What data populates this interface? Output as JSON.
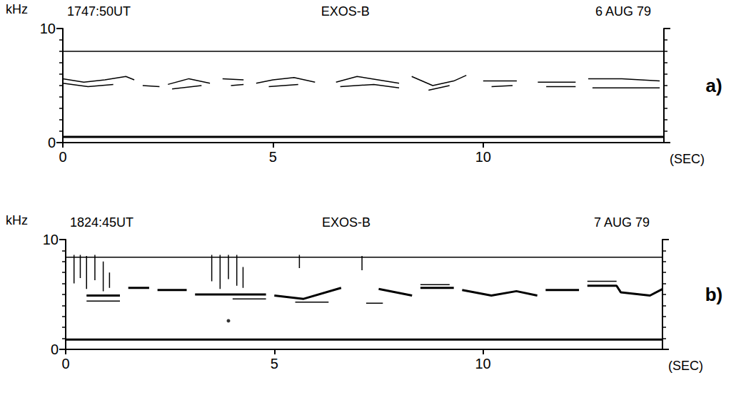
{
  "chart_data": [
    {
      "type": "line",
      "title": "EXOS-B",
      "annotations": [
        "1747:50UT",
        "6 AUG 79"
      ],
      "label": "a)",
      "x_label": "(SEC)",
      "y_label": "kHz",
      "xlim": [
        0,
        14.3
      ],
      "xticks": [
        0,
        5,
        10
      ],
      "ylim": [
        0,
        10
      ],
      "yticks": [
        0,
        10
      ],
      "grid": false,
      "color": "#000000",
      "series": [
        {
          "type": "line",
          "line_style": "solid",
          "x": [
            0,
            14.3
          ],
          "values": [
            8.0,
            8.0
          ]
        },
        {
          "type": "line",
          "line_style": "thick",
          "x": [
            0,
            14.3
          ],
          "values": [
            0.5,
            0.5
          ]
        },
        {
          "type": "line",
          "line_style": "solid",
          "x": [
            0,
            0.5,
            1.0,
            1.5,
            1.7,
            1.8,
            1.9,
            2.3,
            2.4,
            2.5,
            3.0,
            3.5,
            3.6,
            3.8,
            4.3,
            4.4,
            4.6,
            5.0,
            5.5,
            6.0,
            6.2,
            6.5,
            7.0,
            7.5,
            8.0,
            8.2,
            8.3,
            8.8,
            9.3,
            9.6,
            9.8,
            10.0,
            10.8,
            10.9,
            11.3,
            12.2,
            12.4,
            12.5,
            13.3,
            14.2
          ],
          "values": [
            5.6,
            5.3,
            5.5,
            5.8,
            5.5,
            null,
            5.0,
            4.9,
            null,
            5.1,
            5.6,
            5.2,
            null,
            5.6,
            5.5,
            null,
            5.2,
            5.5,
            5.7,
            5.3,
            null,
            5.3,
            5.8,
            5.5,
            5.2,
            null,
            5.8,
            5.0,
            5.4,
            5.9,
            null,
            5.4,
            5.4,
            null,
            5.3,
            5.3,
            null,
            5.6,
            5.6,
            5.4
          ]
        },
        {
          "type": "line",
          "line_style": "solid",
          "x": [
            0,
            0.6,
            1.2,
            1.4,
            2.6,
            3.3,
            3.4,
            4.0,
            4.3,
            4.4,
            4.9,
            5.6,
            5.8,
            6.6,
            7.4,
            8.0,
            8.1,
            8.7,
            9.2,
            9.5,
            10.2,
            10.7,
            10.9,
            11.5,
            12.2,
            12.4,
            12.6,
            14.2
          ],
          "values": [
            5.2,
            4.9,
            5.1,
            null,
            4.7,
            5.0,
            null,
            5.0,
            5.1,
            null,
            4.9,
            5.1,
            null,
            4.9,
            5.1,
            4.8,
            null,
            4.6,
            5.0,
            null,
            4.9,
            5.0,
            null,
            4.9,
            4.9,
            null,
            4.8,
            4.8
          ]
        }
      ]
    },
    {
      "type": "line",
      "title": "EXOS-B",
      "annotations": [
        "1824:45UT",
        "7 AUG 79"
      ],
      "label": "b)",
      "x_label": "(SEC)",
      "y_label": "kHz",
      "xlim": [
        0,
        14.3
      ],
      "xticks": [
        0,
        5,
        10
      ],
      "ylim": [
        0,
        10
      ],
      "yticks": [
        0,
        10
      ],
      "grid": false,
      "color": "#000000",
      "series": [
        {
          "type": "line",
          "line_style": "solid",
          "x": [
            0,
            14.3
          ],
          "values": [
            8.4,
            8.4
          ]
        },
        {
          "type": "line",
          "line_style": "thick",
          "x": [
            0,
            14.3
          ],
          "values": [
            0.9,
            0.9
          ]
        },
        {
          "type": "line",
          "line_style": "thick",
          "x": [
            0.5,
            1.3,
            1.4,
            1.5,
            2.0,
            2.1,
            2.2,
            2.9,
            3.0,
            3.1,
            4.8,
            4.9,
            5.0,
            5.7,
            6.6,
            6.7,
            7.5,
            8.3,
            8.4,
            8.5,
            9.3,
            9.4,
            9.5,
            10.2,
            10.8,
            11.3,
            11.4,
            11.5,
            12.3,
            12.4,
            12.5,
            13.2,
            13.3,
            14.0,
            14.3
          ],
          "values": [
            4.9,
            4.9,
            null,
            5.6,
            5.6,
            null,
            5.4,
            5.4,
            null,
            5.0,
            5.0,
            null,
            4.9,
            4.6,
            5.6,
            null,
            5.5,
            4.9,
            null,
            5.6,
            5.6,
            null,
            5.4,
            4.9,
            5.3,
            4.9,
            null,
            5.4,
            5.4,
            null,
            5.8,
            5.8,
            5.2,
            4.9,
            5.5
          ]
        },
        {
          "type": "line",
          "line_style": "solid",
          "x": [
            0.5,
            1.3,
            1.4,
            4.0,
            4.8,
            4.9,
            5.5,
            6.3,
            6.4,
            7.2,
            7.6,
            7.7,
            8.5,
            9.2,
            9.3,
            12.5,
            13.2
          ],
          "values": [
            4.4,
            4.4,
            null,
            4.6,
            4.6,
            null,
            4.3,
            4.3,
            null,
            4.2,
            4.2,
            null,
            5.9,
            5.9,
            null,
            6.2,
            6.2
          ]
        },
        {
          "type": "line",
          "line_style": "solid",
          "x": [
            0.2,
            0.2,
            0.25,
            0.35,
            0.35,
            0.4,
            0.5,
            0.5,
            0.55,
            0.7,
            0.7,
            0.75,
            0.9,
            0.9,
            0.95,
            1.05,
            1.05,
            1.1,
            3.5,
            3.5,
            3.55,
            3.7,
            3.7,
            3.75,
            3.9,
            3.9,
            3.95,
            4.1,
            4.1,
            4.15,
            4.25,
            4.25,
            4.3,
            5.6,
            5.6,
            5.65,
            7.1,
            7.1
          ],
          "values": [
            8.6,
            6.0,
            null,
            8.6,
            6.5,
            null,
            8.5,
            5.5,
            null,
            8.6,
            6.3,
            null,
            8.0,
            5.3,
            null,
            7.0,
            5.6,
            null,
            8.6,
            6.2,
            null,
            8.6,
            5.5,
            null,
            8.6,
            6.4,
            null,
            8.6,
            5.8,
            null,
            7.5,
            5.6,
            null,
            8.6,
            7.4,
            null,
            8.5,
            7.2
          ]
        },
        {
          "type": "scatter",
          "marker": "circle",
          "x": [
            3.9
          ],
          "values": [
            2.6
          ]
        }
      ]
    }
  ]
}
